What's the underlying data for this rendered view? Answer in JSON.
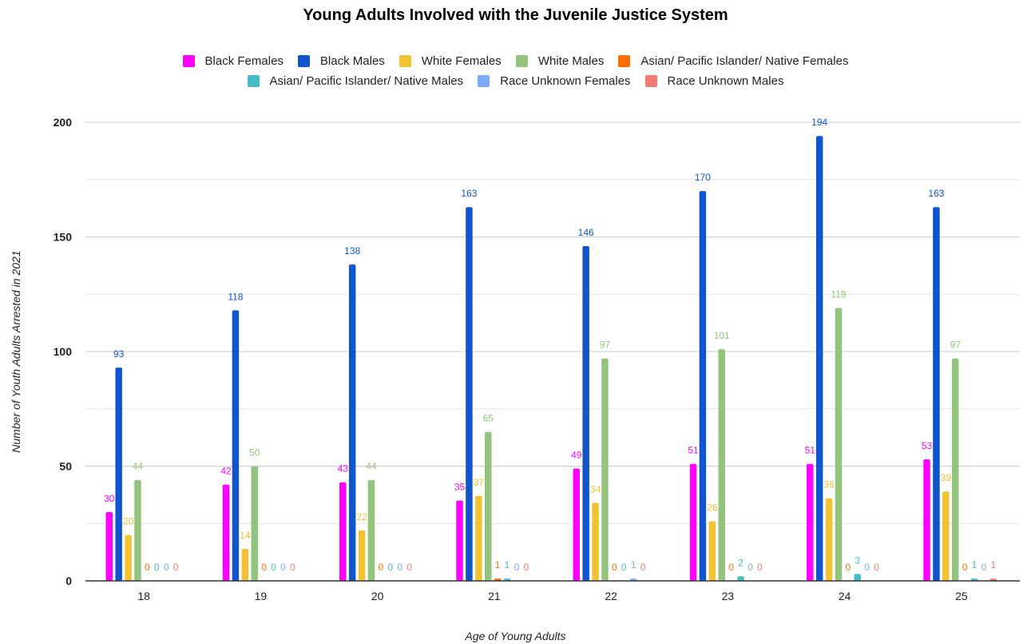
{
  "chart_data": {
    "type": "bar",
    "title": "Young Adults Involved with the Juvenile Justice System",
    "xlabel": "Age of Young Adults",
    "ylabel": "Number of Youth Adults Arrested in 2021",
    "ylim": [
      0,
      200
    ],
    "yticks": [
      0,
      50,
      100,
      150,
      200
    ],
    "grid": true,
    "legend_position": "top",
    "categories": [
      "18",
      "19",
      "20",
      "21",
      "22",
      "23",
      "24",
      "25"
    ],
    "series": [
      {
        "name": "Black Females",
        "color": "#ff00ff",
        "values": [
          30,
          42,
          43,
          35,
          49,
          51,
          51,
          53
        ]
      },
      {
        "name": "Black Males",
        "color": "#1155cc",
        "values": [
          93,
          118,
          138,
          163,
          146,
          170,
          194,
          163
        ]
      },
      {
        "name": "White Females",
        "color": "#f1c232",
        "values": [
          20,
          14,
          22,
          37,
          34,
          26,
          36,
          39
        ]
      },
      {
        "name": "White Males",
        "color": "#93c47d",
        "values": [
          44,
          50,
          44,
          65,
          97,
          101,
          119,
          97
        ]
      },
      {
        "name": "Asian/ Pacific Islander/ Native Females",
        "color": "#ff6d01",
        "values": [
          0,
          0,
          0,
          1,
          0,
          0,
          0,
          0
        ]
      },
      {
        "name": "Asian/ Pacific Islander/ Native Males",
        "color": "#46bdc6",
        "values": [
          0,
          0,
          0,
          1,
          0,
          2,
          3,
          1
        ]
      },
      {
        "name": "Race Unknown Females",
        "color": "#7baaf7",
        "values": [
          0,
          0,
          0,
          0,
          1,
          0,
          0,
          0
        ]
      },
      {
        "name": "Race Unknown Males",
        "color": "#f07b72",
        "values": [
          0,
          0,
          0,
          0,
          0,
          0,
          0,
          1
        ]
      }
    ]
  }
}
